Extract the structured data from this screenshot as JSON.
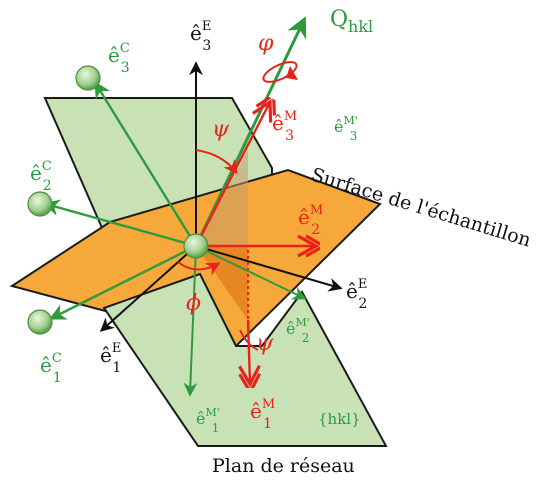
{
  "colors": {
    "green": "#2e9a3e",
    "green_fill": "#c8e2b6",
    "green_edge": "#6a8a5a",
    "orange": "#f6a93a",
    "red": "#e8231b",
    "black": "#111111"
  },
  "labels": {
    "q_hkl": "Q",
    "q_hkl_sub": "hkl",
    "surface": "Surface de l'échantillon",
    "lattice_plane": "Plan de réseau",
    "hkl_plane": "{hkl}",
    "phi_small": "φ",
    "phi_big": "ϕ",
    "psi_top": "ψ",
    "psi_bottom": "ψ",
    "e_hat": "ê",
    "E": "E",
    "C": "C",
    "M": "M",
    "Mp": "M'",
    "i1": "1",
    "i2": "2",
    "i3": "3"
  },
  "icons": {
    "crystal_sphere": "green-sphere-icon",
    "rotation": "rotation-arrow-icon"
  }
}
